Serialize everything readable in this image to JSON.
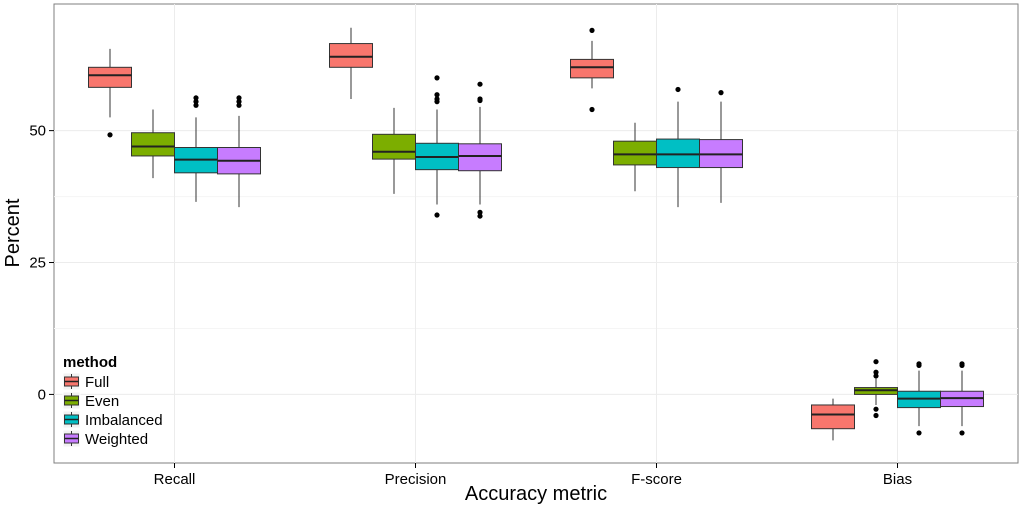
{
  "chart_data": {
    "type": "boxplot",
    "xlabel": "Accuracy metric",
    "ylabel": "Percent",
    "categories": [
      "Recall",
      "Precision",
      "F-score",
      "Bias"
    ],
    "y_ticks": [
      {
        "value": 0,
        "label": "0"
      },
      {
        "value": 25,
        "label": "25"
      },
      {
        "value": 50,
        "label": "50"
      }
    ],
    "ylim": [
      -13,
      74
    ],
    "legend": {
      "title": "method",
      "position": "bottom-left-inside",
      "entries": [
        "Full",
        "Even",
        "Imbalanced",
        "Weighted"
      ]
    },
    "colors": {
      "Full": "#F8766D",
      "Even": "#7CAE00",
      "Imbalanced": "#00BFC4",
      "Weighted": "#C77CFF"
    },
    "series": [
      {
        "name": "Full",
        "boxes": [
          {
            "category": "Recall",
            "low": 52.5,
            "q1": 58.2,
            "median": 60.5,
            "q3": 62.0,
            "high": 65.5,
            "outliers": [
              49.2
            ]
          },
          {
            "category": "Precision",
            "low": 56.0,
            "q1": 62.0,
            "median": 64.0,
            "q3": 66.5,
            "high": 69.5,
            "outliers": []
          },
          {
            "category": "F-score",
            "low": 58.0,
            "q1": 60.0,
            "median": 62.0,
            "q3": 63.5,
            "high": 67.0,
            "outliers": [
              69.0,
              54.0
            ]
          },
          {
            "category": "Bias",
            "low": -8.7,
            "q1": -6.5,
            "median": -3.8,
            "q3": -2.0,
            "high": -0.8,
            "outliers": []
          }
        ]
      },
      {
        "name": "Even",
        "boxes": [
          {
            "category": "Recall",
            "low": 41.0,
            "q1": 45.2,
            "median": 47.0,
            "q3": 49.6,
            "high": 54.0,
            "outliers": []
          },
          {
            "category": "Precision",
            "low": 38.0,
            "q1": 44.6,
            "median": 46.0,
            "q3": 49.3,
            "high": 54.3,
            "outliers": []
          },
          {
            "category": "F-score",
            "low": 38.5,
            "q1": 43.5,
            "median": 45.5,
            "q3": 48.0,
            "high": 51.5,
            "outliers": []
          },
          {
            "category": "Bias",
            "low": -2.0,
            "q1": 0.0,
            "median": 0.8,
            "q3": 1.3,
            "high": 3.0,
            "outliers": [
              6.2,
              4.2,
              3.5,
              -2.8,
              -4.0
            ]
          }
        ]
      },
      {
        "name": "Imbalanced",
        "boxes": [
          {
            "category": "Recall",
            "low": 36.5,
            "q1": 42.0,
            "median": 44.5,
            "q3": 46.8,
            "high": 52.5,
            "outliers": [
              56.2,
              55.5,
              54.8
            ]
          },
          {
            "category": "Precision",
            "low": 36.0,
            "q1": 42.6,
            "median": 45.0,
            "q3": 47.6,
            "high": 54.0,
            "outliers": [
              60.0,
              56.8,
              56.0,
              55.5,
              34.0
            ]
          },
          {
            "category": "F-score",
            "low": 35.5,
            "q1": 43.0,
            "median": 45.5,
            "q3": 48.4,
            "high": 55.5,
            "outliers": [
              57.8
            ]
          },
          {
            "category": "Bias",
            "low": -6.0,
            "q1": -2.5,
            "median": -0.8,
            "q3": 0.6,
            "high": 4.5,
            "outliers": [
              5.8,
              5.5,
              -7.3
            ]
          }
        ]
      },
      {
        "name": "Weighted",
        "boxes": [
          {
            "category": "Recall",
            "low": 35.5,
            "q1": 41.8,
            "median": 44.3,
            "q3": 46.8,
            "high": 52.8,
            "outliers": [
              56.2,
              55.5,
              54.8
            ]
          },
          {
            "category": "Precision",
            "low": 36.0,
            "q1": 42.4,
            "median": 45.2,
            "q3": 47.5,
            "high": 54.5,
            "outliers": [
              58.8,
              56.0,
              55.7,
              34.5,
              33.8
            ]
          },
          {
            "category": "F-score",
            "low": 36.3,
            "q1": 43.0,
            "median": 45.5,
            "q3": 48.3,
            "high": 55.5,
            "outliers": [
              57.2
            ]
          },
          {
            "category": "Bias",
            "low": -6.0,
            "q1": -2.3,
            "median": -0.7,
            "q3": 0.6,
            "high": 4.5,
            "outliers": [
              5.8,
              5.5,
              -7.3
            ]
          }
        ]
      }
    ]
  }
}
